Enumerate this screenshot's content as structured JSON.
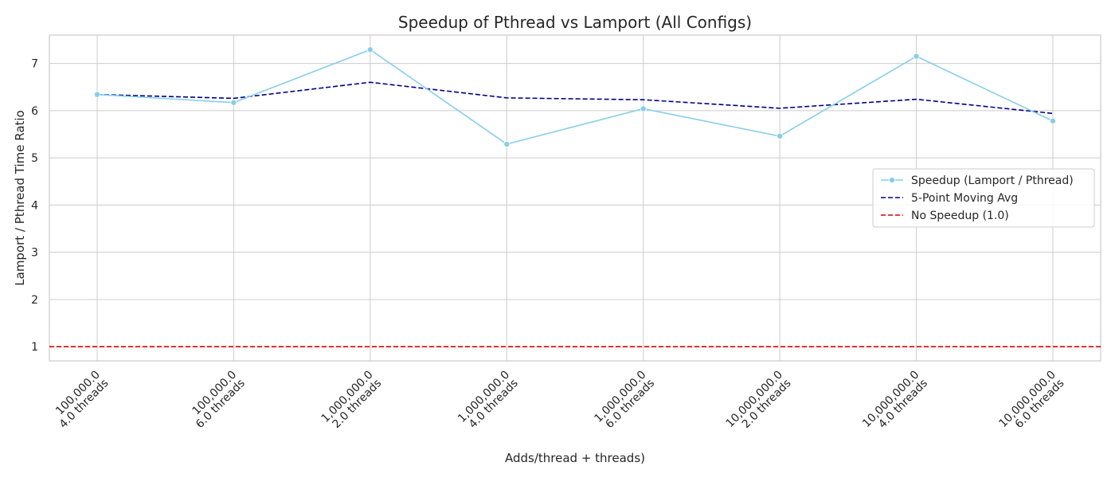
{
  "chart_data": {
    "type": "line",
    "title": "Speedup of Pthread vs Lamport (All Configs)",
    "xlabel": "Adds/thread + threads)",
    "ylabel": "Lamport / Pthread Time Ratio",
    "ylim": [
      0.7,
      7.6
    ],
    "yticks": [
      1,
      2,
      3,
      4,
      5,
      6,
      7
    ],
    "grid": true,
    "legend_position": "center-right",
    "categories": [
      [
        "100,000.0",
        "4.0 threads"
      ],
      [
        "100,000.0",
        "6.0 threads"
      ],
      [
        "1,000,000.0",
        "2.0 threads"
      ],
      [
        "1,000,000.0",
        "4.0 threads"
      ],
      [
        "1,000,000.0",
        "6.0 threads"
      ],
      [
        "10,000,000.0",
        "2.0 threads"
      ],
      [
        "10,000,000.0",
        "4.0 threads"
      ],
      [
        "10,000,000.0",
        "6.0 threads"
      ]
    ],
    "series": [
      {
        "name": "Speedup (Lamport / Pthread)",
        "style": "solid-marker",
        "color": "#87ceeb",
        "values": [
          6.34,
          6.17,
          7.29,
          5.29,
          6.04,
          5.46,
          7.15,
          5.78
        ]
      },
      {
        "name": "5-Point Moving Avg",
        "style": "dashed",
        "color": "#00008b",
        "values": [
          6.34,
          6.26,
          6.6,
          6.27,
          6.23,
          6.05,
          6.24,
          5.94
        ]
      }
    ],
    "reference_lines": [
      {
        "name": "No Speedup (1.0)",
        "value": 1.0,
        "style": "dashed",
        "color": "#e00000"
      }
    ]
  }
}
